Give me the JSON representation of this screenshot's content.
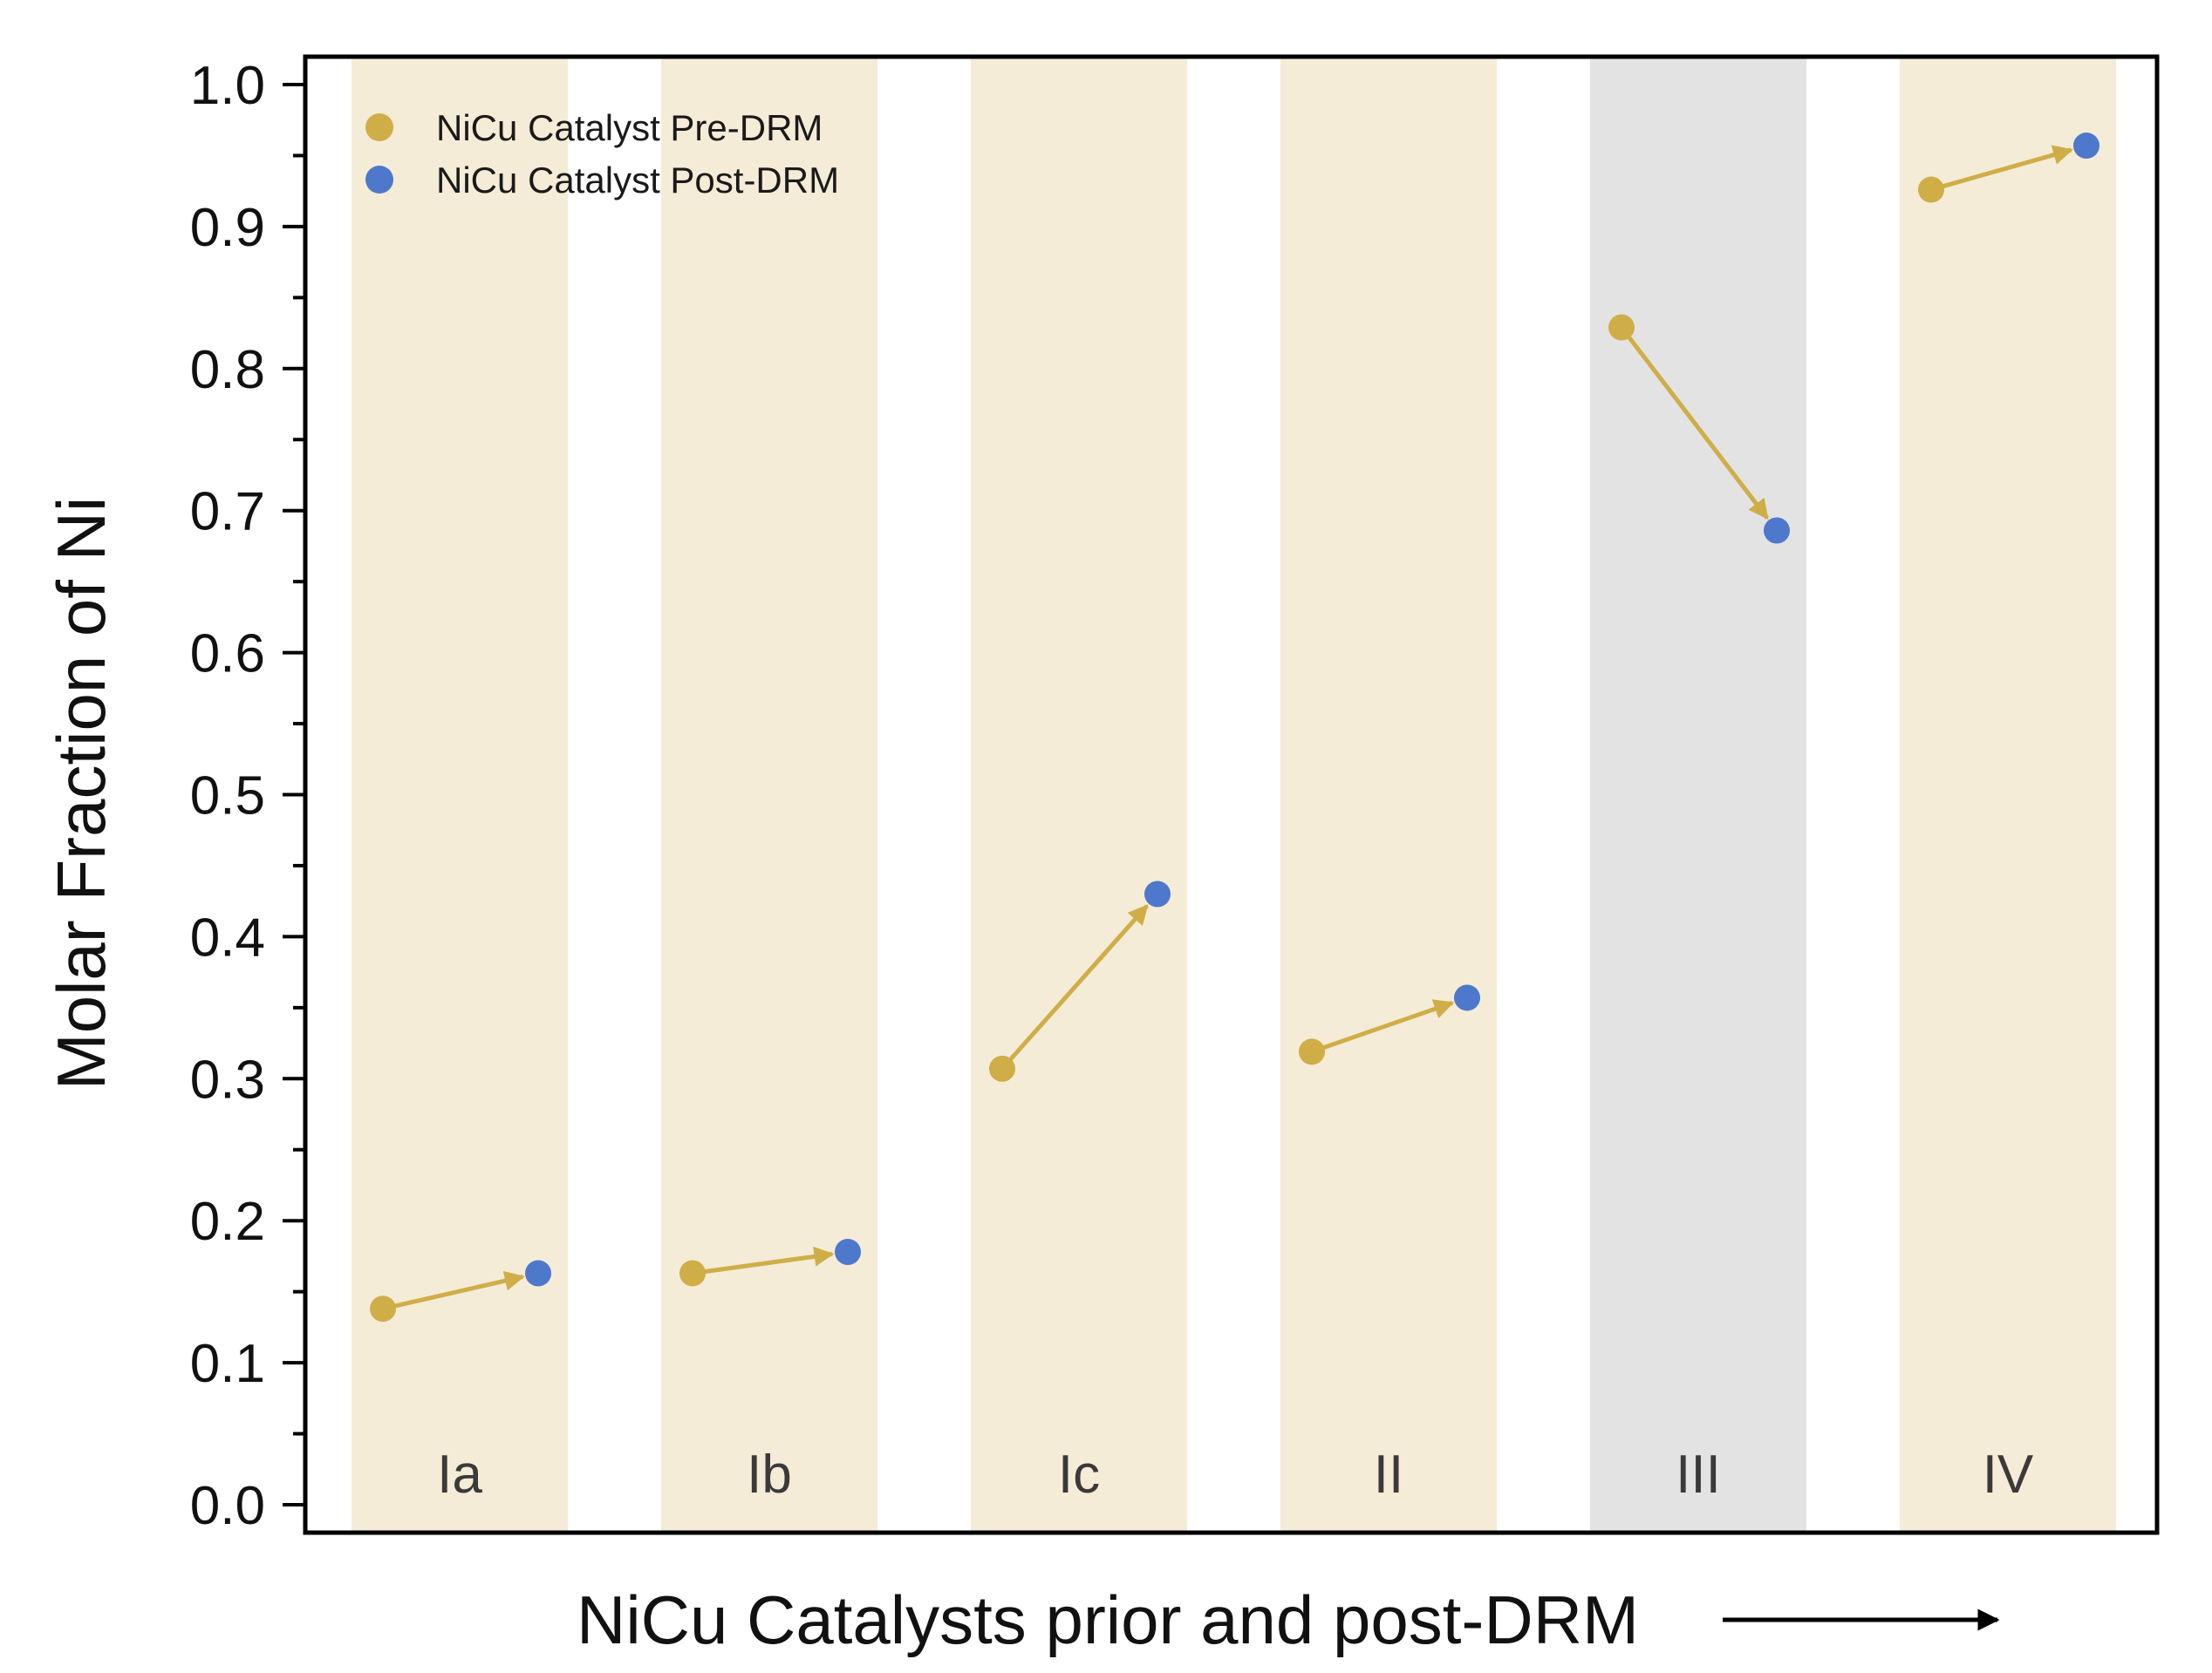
{
  "chart_data": {
    "type": "scatter",
    "title": "",
    "xlabel": "NiCu Catalysts prior and post-DRM",
    "ylabel": "Molar Fraction of Ni",
    "ylim": [
      0,
      1.0
    ],
    "yticks": [
      "0.0",
      "0.1",
      "0.2",
      "0.3",
      "0.4",
      "0.5",
      "0.6",
      "0.7",
      "0.8",
      "0.9",
      "1.0"
    ],
    "yminor_step": 0.05,
    "grid": false,
    "legend_position": "top-left",
    "categories": [
      "Ia",
      "Ib",
      "Ic",
      "II",
      "III",
      "IV"
    ],
    "band_colors": [
      "#f5ecd8",
      "#f5ecd8",
      "#f5ecd8",
      "#f5ecd8",
      "#e3e3e3",
      "#f5ecd8"
    ],
    "series": [
      {
        "name": "NiCu Catalyst Pre-DRM",
        "color": "#cfae48",
        "values": [
          0.138,
          0.163,
          0.307,
          0.319,
          0.829,
          0.926
        ]
      },
      {
        "name": "NiCu Catalyst Post-DRM",
        "color": "#4d78cc",
        "values": [
          0.163,
          0.178,
          0.43,
          0.357,
          0.686,
          0.957
        ]
      }
    ],
    "arrow_color": "#cfae48",
    "annotations": [
      "Arrows connect Pre-DRM to Post-DRM value for each catalyst"
    ]
  }
}
